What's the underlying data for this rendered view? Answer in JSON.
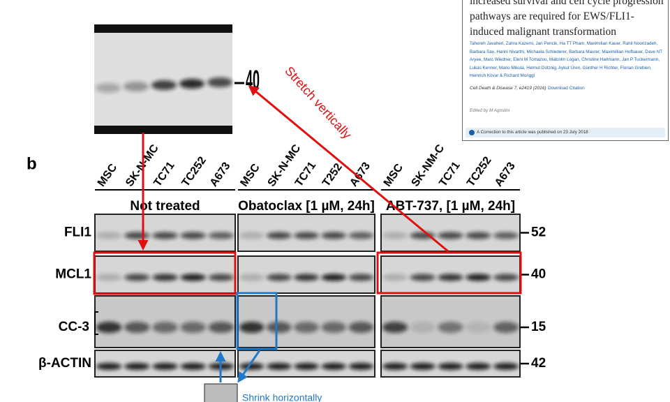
{
  "article": {
    "title": "increased survival and cell cycle progression pathways are required for EWS/FLI1-induced malignant transformation",
    "authors": "Tahereh Javaheri, Zahra Kazemi, Jan Pencik, Ha TT Pham, Maximilian Kauer, Rahil Noorizadeh, Barbara Sax, Harini Nivarthi, Michaela Schlederer, Barbara Maurer, Maximillian Hofbauer, Dave NT Aryee, Marc Wiedner, Eleni M Tomazou, Malcolm Logan, Christine Hartmann, Jan P Tuckermann, Lukas Kenner, Mario Mikula, Helmut Dolznig, Aykut Üren, Günther H Richter, Florian Grebien, Heinrich Kovar & Richard Moriggl",
    "citation": "Cell Death & Disease 7, e2419 (2016)",
    "download": "Download Citation",
    "edited_by": "Edited by M Agostini",
    "correction": "A Correction to this article was published on 23 July 2018"
  },
  "zoom": {
    "marker": "40"
  },
  "annotations": {
    "stretch": "Stretch vertically",
    "shrink": "Shrink horizontally"
  },
  "figure": {
    "panel_label": "b",
    "groups": [
      {
        "condition": "Not treated",
        "lanes": [
          "MSC",
          "SK-N-MC",
          "TC71",
          "TC252",
          "A673"
        ]
      },
      {
        "condition": "Obatoclax [1 µM, 24h]",
        "lanes": [
          "MSC",
          "SK-N-MC",
          "TC71",
          "T252",
          "A673"
        ]
      },
      {
        "condition": "ABT-737, [1 µM, 24h]",
        "lanes": [
          "MSC",
          "SK-NM-C",
          "TC71",
          "TC252",
          "A673"
        ]
      }
    ],
    "rows": [
      {
        "label": "FLI1",
        "marker": "52"
      },
      {
        "label": "MCL1",
        "marker": "40"
      },
      {
        "label": "CC-3",
        "marker": "15"
      },
      {
        "label": "β-ACTIN",
        "marker": "42"
      }
    ]
  }
}
